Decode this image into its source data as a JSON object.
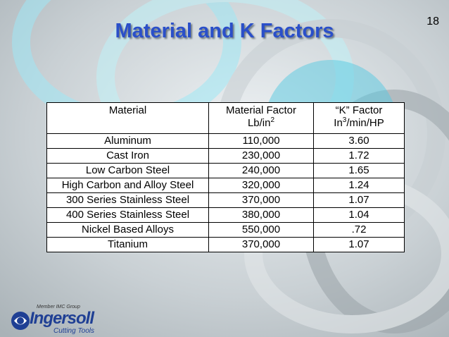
{
  "page_number": "18",
  "title": "Material and K Factors",
  "table": {
    "header": [
      {
        "line1": "Material"
      },
      {
        "line1": "Material Factor",
        "line2": "Lb/in",
        "sup": "2"
      },
      {
        "line1": "“K” Factor",
        "line2": "In",
        "sup": "3",
        "line2_rest": "/min/HP"
      }
    ],
    "rows": [
      [
        "Aluminum",
        "110,000",
        "3.60"
      ],
      [
        "Cast Iron",
        "230,000",
        "1.72"
      ],
      [
        "Low Carbon Steel",
        "240,000",
        "1.65"
      ],
      [
        "High Carbon and Alloy Steel",
        "320,000",
        "1.24"
      ],
      [
        "300 Series Stainless Steel",
        "370,000",
        "1.07"
      ],
      [
        "400 Series Stainless Steel",
        "380,000",
        "1.04"
      ],
      [
        "Nickel Based Alloys",
        "550,000",
        ".72"
      ],
      [
        "Titanium",
        "370,000",
        "1.07"
      ]
    ]
  },
  "logo": {
    "tagline": "Member IMC Group",
    "brand": "Ingersoll",
    "sub": "Cutting Tools"
  }
}
